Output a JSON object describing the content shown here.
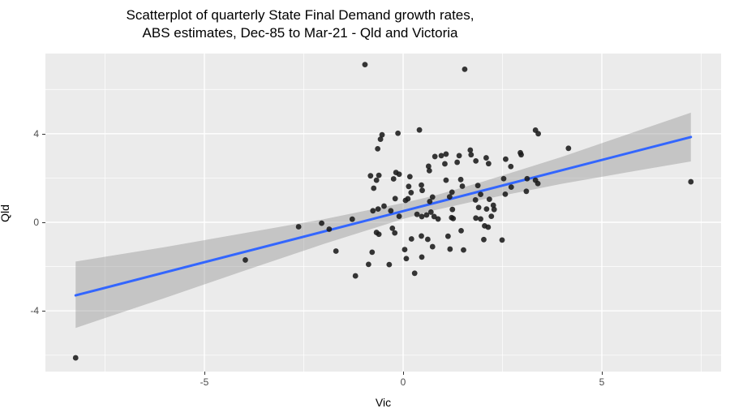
{
  "chart": {
    "title_line1": "Scatterplot of quarterly State Final Demand growth rates,",
    "title_line2": "ABS estimates, Dec-85 to Mar-21 - Qld and Victoria",
    "xlabel": "Vic",
    "ylabel": "Qld"
  },
  "chart_data": {
    "type": "scatter",
    "title": "Scatterplot of quarterly State Final Demand growth rates, ABS estimates, Dec-85 to Mar-21 - Qld and Victoria",
    "xlabel": "Vic",
    "ylabel": "Qld",
    "xlim": [
      -9,
      8
    ],
    "ylim": [
      -6.74,
      7.62
    ],
    "x_ticks": [
      {
        "v": -5,
        "label": "-5"
      },
      {
        "v": 0,
        "label": "0"
      },
      {
        "v": 5,
        "label": "5"
      }
    ],
    "y_ticks": [
      {
        "v": 4,
        "label": "4"
      },
      {
        "v": 0,
        "label": "0"
      },
      {
        "v": -4,
        "label": "-4"
      }
    ],
    "x_minor_gridlines": [
      -7.5,
      -2.5,
      2.5,
      7.5
    ],
    "y_minor_gridlines": [
      6,
      2,
      -2,
      -6
    ],
    "grid": true,
    "legend": "none",
    "points": [
      [
        -0.96,
        7.12
      ],
      [
        1.55,
        6.91
      ],
      [
        -0.13,
        4.02
      ],
      [
        0.41,
        4.17
      ],
      [
        -0.53,
        3.95
      ],
      [
        -0.57,
        3.75
      ],
      [
        -0.64,
        3.32
      ],
      [
        0.8,
        2.97
      ],
      [
        0.64,
        2.53
      ],
      [
        0.66,
        2.33
      ],
      [
        -0.82,
        2.1
      ],
      [
        -0.61,
        2.12
      ],
      [
        -0.67,
        1.9
      ],
      [
        -0.18,
        2.25
      ],
      [
        -0.1,
        2.17
      ],
      [
        -0.24,
        1.96
      ],
      [
        0.17,
        2.06
      ],
      [
        -0.74,
        1.54
      ],
      [
        0.46,
        1.68
      ],
      [
        0.48,
        1.44
      ],
      [
        0.14,
        1.62
      ],
      [
        0.2,
        1.34
      ],
      [
        -0.2,
        1.07
      ],
      [
        0.06,
        0.99
      ],
      [
        0.12,
        1.06
      ],
      [
        0.74,
        1.14
      ],
      [
        0.67,
        0.94
      ],
      [
        0.96,
        3.01
      ],
      [
        1.05,
        2.64
      ],
      [
        -0.48,
        0.73
      ],
      [
        3.33,
        4.16
      ],
      [
        3.4,
        4.0
      ],
      [
        1.08,
        3.08
      ],
      [
        1.41,
        3.01
      ],
      [
        1.69,
        3.26
      ],
      [
        1.71,
        3.05
      ],
      [
        1.36,
        2.71
      ],
      [
        1.83,
        2.77
      ],
      [
        2.09,
        2.91
      ],
      [
        2.15,
        2.65
      ],
      [
        2.58,
        2.85
      ],
      [
        2.71,
        2.52
      ],
      [
        2.97,
        3.05
      ],
      [
        2.95,
        3.14
      ],
      [
        1.08,
        1.9
      ],
      [
        1.23,
        1.36
      ],
      [
        1.45,
        1.93
      ],
      [
        1.49,
        1.63
      ],
      [
        1.88,
        1.66
      ],
      [
        1.95,
        1.26
      ],
      [
        2.53,
        1.97
      ],
      [
        2.72,
        1.59
      ],
      [
        3.12,
        1.97
      ],
      [
        3.33,
        1.9
      ],
      [
        3.1,
        1.4
      ],
      [
        1.82,
        1.01
      ],
      [
        2.17,
        1.04
      ],
      [
        2.27,
        0.77
      ],
      [
        2.57,
        1.27
      ],
      [
        1.17,
        1.15
      ],
      [
        -0.76,
        0.52
      ],
      [
        -0.63,
        0.6
      ],
      [
        -0.31,
        0.52
      ],
      [
        -0.1,
        0.27
      ],
      [
        0.35,
        0.36
      ],
      [
        0.47,
        0.26
      ],
      [
        0.59,
        0.33
      ],
      [
        0.7,
        0.46
      ],
      [
        0.78,
        0.26
      ],
      [
        0.88,
        0.15
      ],
      [
        1.22,
        0.21
      ],
      [
        -1.28,
        0.14
      ],
      [
        -0.61,
        -0.54
      ],
      [
        -0.67,
        -0.46
      ],
      [
        -0.27,
        -0.27
      ],
      [
        -0.21,
        -0.48
      ],
      [
        0.21,
        -0.75
      ],
      [
        0.46,
        -0.62
      ],
      [
        0.62,
        -0.77
      ],
      [
        0.74,
        -1.1
      ],
      [
        1.13,
        -0.63
      ],
      [
        0.04,
        -1.23
      ],
      [
        -0.78,
        -1.35
      ],
      [
        -0.87,
        -1.9
      ],
      [
        -0.35,
        -1.91
      ],
      [
        0.08,
        -1.64
      ],
      [
        0.47,
        -1.57
      ],
      [
        -1.2,
        -2.42
      ],
      [
        0.29,
        -2.3
      ],
      [
        1.24,
        0.58
      ],
      [
        1.9,
        0.67
      ],
      [
        2.1,
        0.6
      ],
      [
        2.29,
        0.58
      ],
      [
        2.22,
        0.27
      ],
      [
        1.83,
        0.19
      ],
      [
        1.95,
        0.15
      ],
      [
        1.26,
        0.17
      ],
      [
        1.46,
        -0.38
      ],
      [
        2.05,
        -0.16
      ],
      [
        2.14,
        -0.22
      ],
      [
        2.03,
        -0.78
      ],
      [
        2.49,
        -0.8
      ],
      [
        1.18,
        -1.21
      ],
      [
        1.52,
        -1.25
      ],
      [
        4.16,
        3.34
      ],
      [
        7.24,
        1.83
      ],
      [
        -8.24,
        -6.12
      ],
      [
        -3.97,
        -1.7
      ],
      [
        -2.63,
        -0.2
      ],
      [
        -2.05,
        -0.04
      ],
      [
        -1.86,
        -0.31
      ],
      [
        -1.69,
        -1.3
      ],
      [
        3.39,
        1.75
      ]
    ],
    "regression_line": {
      "x": [
        -8.24,
        7.24
      ],
      "y": [
        -3.3,
        3.85
      ],
      "equation": "Qld = 0.50 + 0.46 * Vic"
    },
    "ci_band": [
      {
        "v": -8.24,
        "upper": -1.77,
        "lower": -4.77
      },
      {
        "v": -6.0,
        "upper": -1.12,
        "lower": -3.42
      },
      {
        "v": -4.0,
        "upper": -0.49,
        "lower": -2.19
      },
      {
        "v": -2.0,
        "upper": 0.14,
        "lower": -0.98
      },
      {
        "v": 0.0,
        "upper": 0.87,
        "lower": 0.15
      },
      {
        "v": 0.8,
        "upper": 1.21,
        "lower": 0.55
      },
      {
        "v": 2.0,
        "upper": 1.83,
        "lower": 1.03
      },
      {
        "v": 4.0,
        "upper": 2.96,
        "lower": 1.74
      },
      {
        "v": 6.0,
        "upper": 4.19,
        "lower": 2.37
      },
      {
        "v": 7.24,
        "upper": 4.95,
        "lower": 2.75
      }
    ],
    "colors": {
      "panel_bg": "#EBEBEB",
      "gridline": "#FFFFFF",
      "point": "#1A1A1A",
      "smooth_line": "#3366FF",
      "ci_band": "#7F7F7F",
      "ci_band_opacity": 0.35,
      "axis_text": "#4D4D4D",
      "tick_mark": "#333333",
      "title_text": "#000000"
    }
  }
}
